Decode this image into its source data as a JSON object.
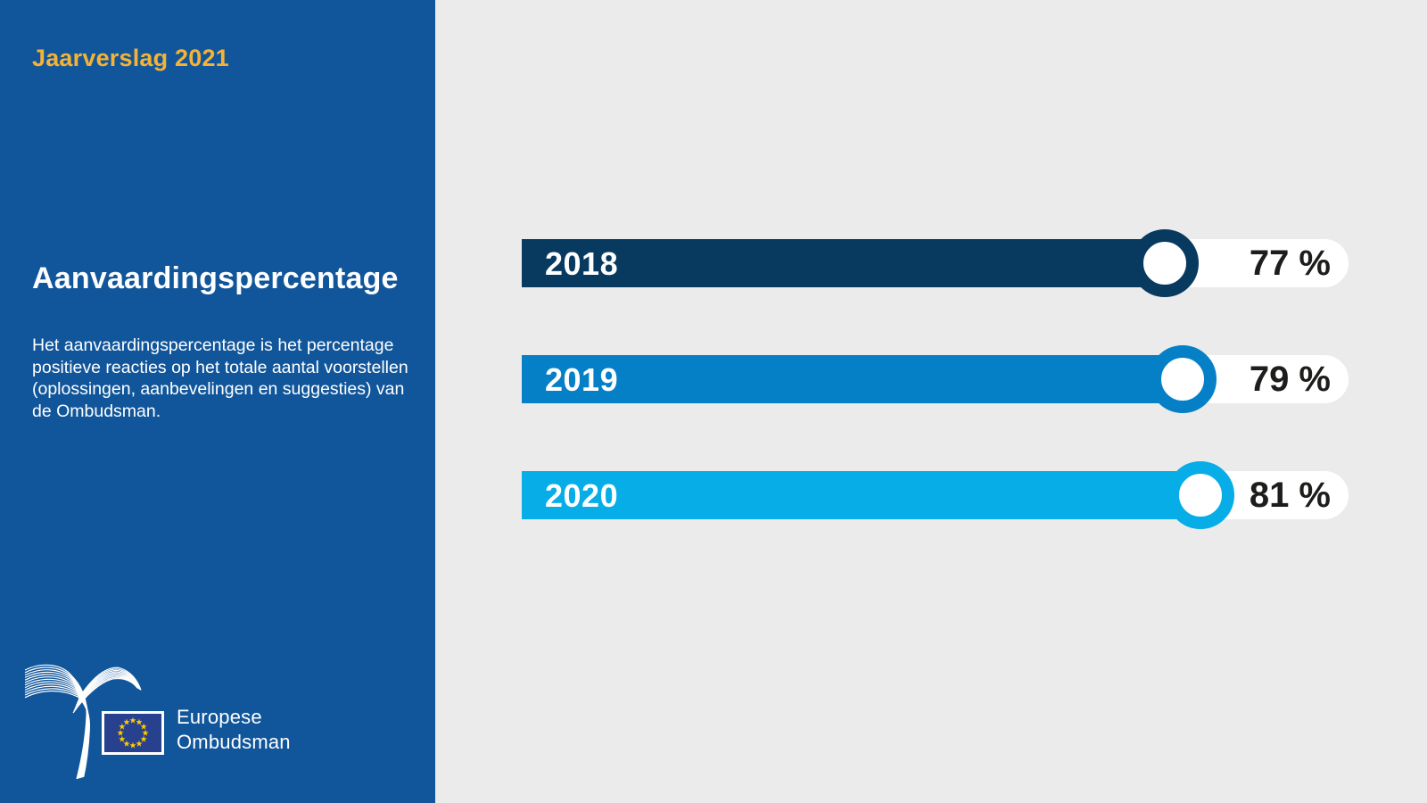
{
  "sidebar": {
    "report_label": "Jaarverslag 2021",
    "title": "Aanvaardingspercentage",
    "description": "Het aanvaardingspercentage is het percentage positieve reacties op het totale aantal voorstellen (oplossingen, aanbevelingen en suggesties) van de Ombudsman.",
    "logo": {
      "org_line1": "Europese",
      "org_line2": "Ombudsman",
      "bird_icon": "bird-lines-icon",
      "flag_icon": "eu-flag-icon"
    }
  },
  "chart_data": {
    "type": "bar",
    "orientation": "horizontal",
    "title": "Aanvaardingspercentage",
    "categories": [
      "2018",
      "2019",
      "2020"
    ],
    "values": [
      77,
      79,
      81
    ],
    "unit": "%",
    "value_labels": [
      "77 %",
      "79 %",
      "81 %"
    ],
    "series_colors": [
      "#083A60",
      "#0580C7",
      "#06ADE7"
    ],
    "legend": "none",
    "grid": false,
    "value_range_hint": [
      0,
      100
    ]
  },
  "colors": {
    "sidebar_bg": "#11569B",
    "canvas_bg": "#EBEBEB",
    "accent_yellow": "#F6B235",
    "pill_bg": "#FFFFFF",
    "value_text": "#1D1D1B",
    "flag_blue": "#27418F",
    "flag_stars": "#FFCC00",
    "text_white": "#FFFFFF"
  }
}
